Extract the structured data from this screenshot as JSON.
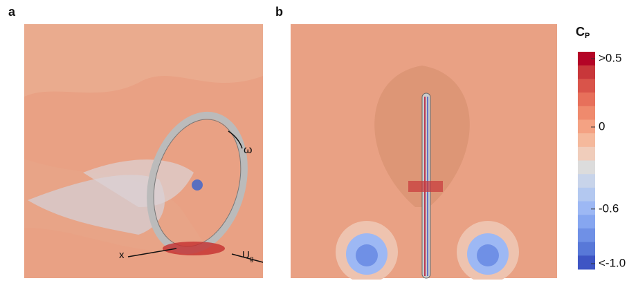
{
  "panels": {
    "a": {
      "label": "a",
      "omega": "ω",
      "x_axis": "x",
      "velocity": "U",
      "velocity_sub": "g"
    },
    "b": {
      "label": "b"
    }
  },
  "colorbar": {
    "title": "C",
    "title_sub": "P",
    "range": [
      -1.0,
      0.5
    ],
    "ticks": [
      {
        "value": 0.5,
        "label": ">0.5"
      },
      0,
      -0.6,
      {
        "value": -1.0,
        "label": "<-1.0"
      }
    ],
    "colors": [
      "#b40426",
      "#c8373a",
      "#d9544a",
      "#e7705b",
      "#ef8a6d",
      "#f4a283",
      "#f5b99c",
      "#f0cdbb",
      "#dcdcdc",
      "#c8d4ea",
      "#b3c8f0",
      "#9db8f4",
      "#86a6f0",
      "#6f90e6",
      "#5878d8",
      "#3e55c4"
    ]
  }
}
